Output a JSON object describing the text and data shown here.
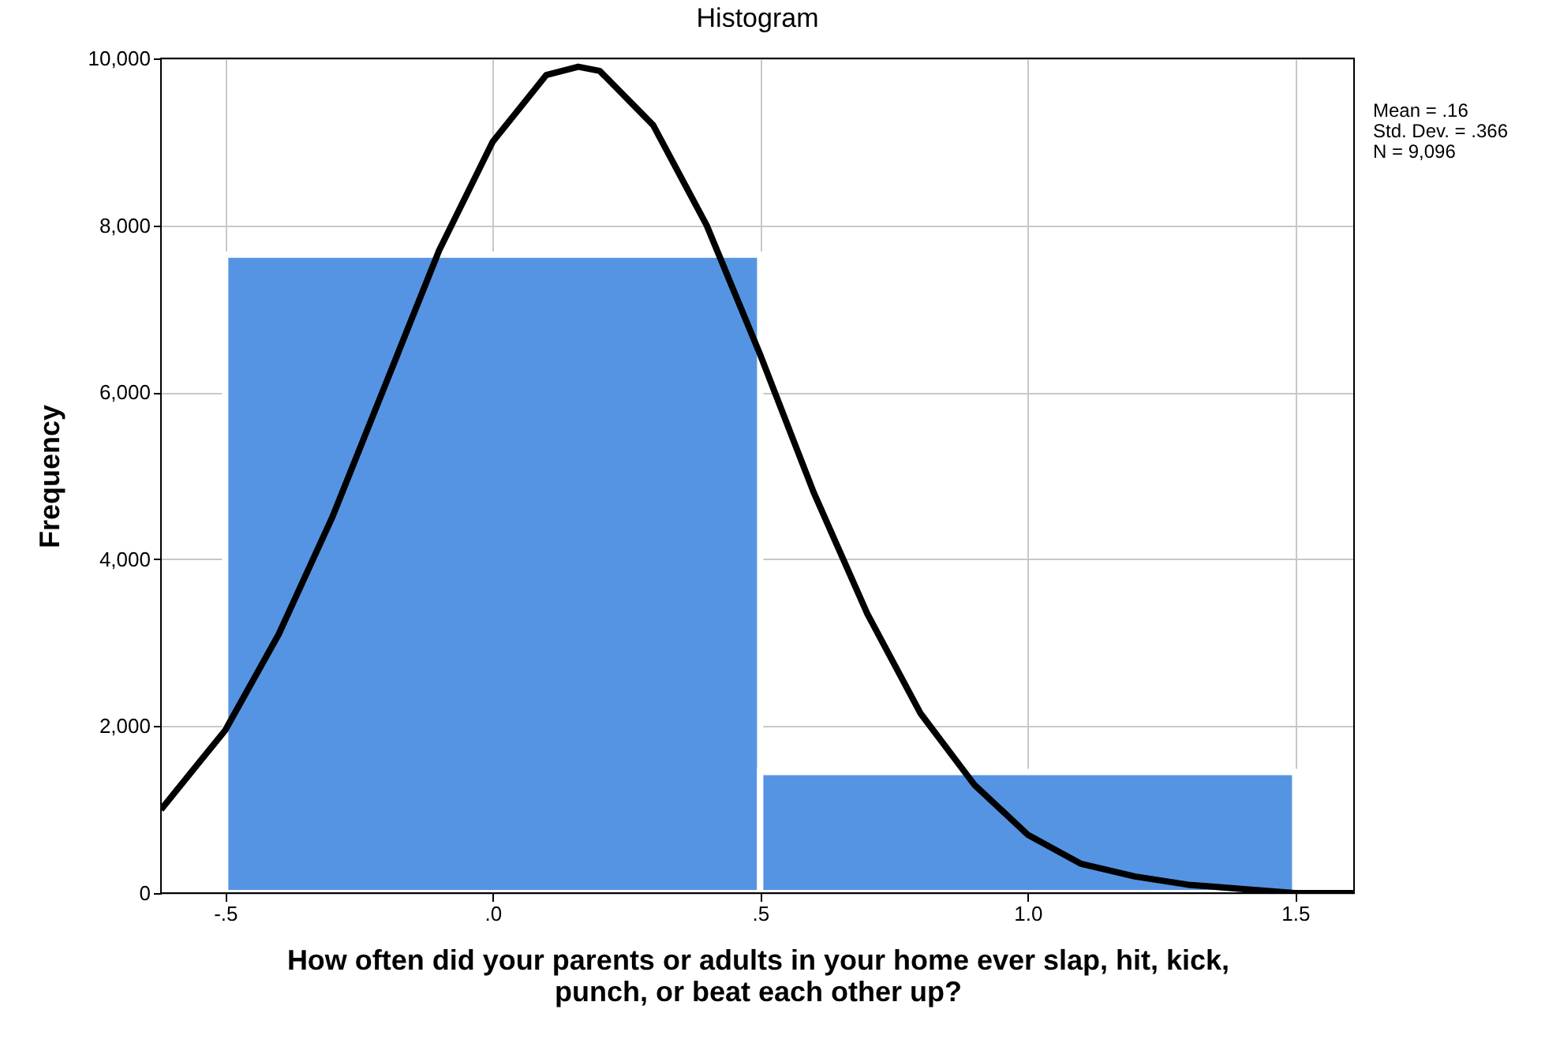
{
  "chart_data": {
    "type": "histogram",
    "title": "Histogram",
    "xlabel": "How often did your parents or adults in your home ever slap, hit, kick, punch, or beat each other up?",
    "ylabel": "Frequency",
    "xlim": [
      -0.62,
      1.61
    ],
    "xticks": [
      {
        "value": -0.5,
        "label": "-.5"
      },
      {
        "value": 0,
        "label": ".0"
      },
      {
        "value": 0.5,
        "label": ".5"
      },
      {
        "value": 1,
        "label": "1.0"
      },
      {
        "value": 1.5,
        "label": "1.5"
      }
    ],
    "ylim": [
      0,
      10000
    ],
    "yticks": [
      {
        "value": 0,
        "label": "0"
      },
      {
        "value": 2000,
        "label": "2,000"
      },
      {
        "value": 4000,
        "label": "4,000"
      },
      {
        "value": 6000,
        "label": "6,000"
      },
      {
        "value": 8000,
        "label": "8,000"
      },
      {
        "value": 10000,
        "label": "10,000"
      }
    ],
    "grid": true,
    "annotations": [
      "Mean = .16",
      "Std. Dev. = .366",
      "N = 9,096"
    ],
    "series": [
      {
        "color": "#5594e3",
        "bins": [
          -0.5,
          0.5,
          1.5
        ],
        "values": [
          7650,
          1450
        ]
      },
      {
        "type": "line",
        "color": "#000000",
        "x": [
          -0.62,
          -0.5,
          -0.4,
          -0.3,
          -0.2,
          -0.1,
          0,
          0.1,
          0.16,
          0.2,
          0.3,
          0.4,
          0.5,
          0.6,
          0.7,
          0.8,
          0.9,
          1.0,
          1.1,
          1.2,
          1.3,
          1.4,
          1.5,
          1.61
        ],
        "values": [
          1000,
          1950,
          3100,
          4500,
          6100,
          7700,
          9000,
          9800,
          9900,
          9850,
          9200,
          8000,
          6450,
          4800,
          3350,
          2150,
          1300,
          700,
          350,
          200,
          100,
          50,
          0,
          0
        ]
      }
    ]
  }
}
